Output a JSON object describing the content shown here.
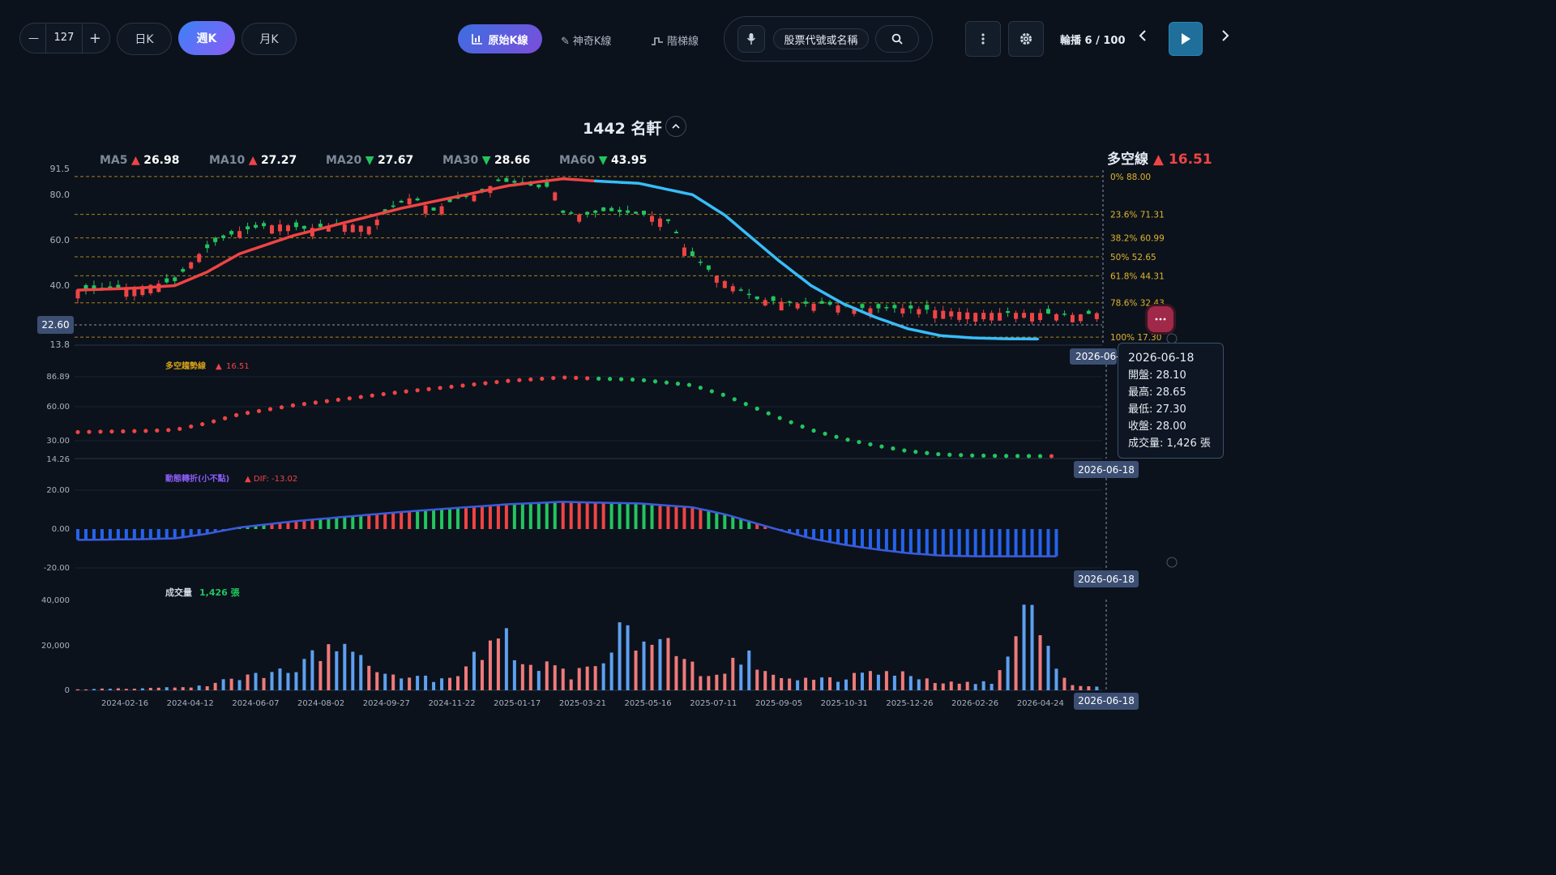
{
  "toolbar": {
    "minus": "—",
    "count": "127",
    "plus": "+",
    "periods": [
      "日K",
      "週K",
      "月K"
    ],
    "active_period": 1,
    "modes": [
      "原始K線",
      "神奇K線",
      "階梯線"
    ],
    "search_placeholder": "股票代號或名稱",
    "playback": "輪播 6 / 100"
  },
  "stock": {
    "title": "1442 名軒"
  },
  "ma": [
    {
      "name": "MA5",
      "dir": "▲",
      "value": "26.98",
      "color": "#ef4444"
    },
    {
      "name": "MA10",
      "dir": "▲",
      "value": "27.27",
      "color": "#ef4444"
    },
    {
      "name": "MA20",
      "dir": "▼",
      "value": "27.67",
      "color": "#22c55e"
    },
    {
      "name": "MA30",
      "dir": "▼",
      "value": "28.66",
      "color": "#22c55e"
    },
    {
      "name": "MA60",
      "dir": "▼",
      "value": "43.95",
      "color": "#22c55e"
    }
  ],
  "trend_line": {
    "label": "多空線",
    "dir": "▲",
    "value": "16.51"
  },
  "price_panel": {
    "y_ticks": [
      "91.5",
      "80.0",
      "60.0",
      "40.0",
      "13.8"
    ],
    "current_price_tag": "22.60",
    "date_tag": "2026-06-",
    "fib_levels": [
      {
        "label": "0%",
        "value": "88.00"
      },
      {
        "label": "23.6%",
        "value": "71.31"
      },
      {
        "label": "38.2%",
        "value": "60.99"
      },
      {
        "label": "50%",
        "value": "52.65"
      },
      {
        "label": "61.8%",
        "value": "44.31"
      },
      {
        "label": "78.6%",
        "value": "32.43"
      },
      {
        "label": "100%",
        "value": "17.30"
      }
    ]
  },
  "trend_panel": {
    "title": "多空趨勢線",
    "dir": "▲",
    "value": "16.51",
    "y_ticks": [
      "86.89",
      "60.00",
      "30.00",
      "14.26"
    ],
    "date_tag": "2026-06-18"
  },
  "macd_panel": {
    "title": "動態轉折(小不點)",
    "dif_label": "▲ DIF: -13.02",
    "y_ticks": [
      "20.00",
      "0.00",
      "-20.00"
    ],
    "date_tag": "2026-06-18"
  },
  "volume_panel": {
    "title": "成交量",
    "value": "1,426 張",
    "y_ticks": [
      "40,000",
      "20,000",
      "0"
    ],
    "date_tag": "2026-06-18"
  },
  "x_axis": [
    "2024-02-16",
    "2024-04-12",
    "2024-06-07",
    "2024-08-02",
    "2024-09-27",
    "2024-11-22",
    "2025-01-17",
    "2025-03-21",
    "2025-05-16",
    "2025-07-11",
    "2025-09-05",
    "2025-10-31",
    "2025-12-26",
    "2026-02-26",
    "2026-04-24"
  ],
  "tooltip": {
    "date": "2026-06-18",
    "open": "開盤: 28.10",
    "high": "最高: 28.65",
    "low": "最低: 27.30",
    "close": "收盤: 28.00",
    "volume": "成交量: 1,426 張"
  },
  "chart_data": {
    "type": "candlestick",
    "interval": "weekly",
    "bars": 127,
    "close_path": [
      [
        0,
        38
      ],
      [
        10,
        39
      ],
      [
        18,
        42
      ],
      [
        22,
        53
      ],
      [
        26,
        60
      ],
      [
        30,
        64
      ],
      [
        34,
        66
      ],
      [
        38,
        67
      ],
      [
        42,
        65
      ],
      [
        46,
        66
      ],
      [
        50,
        67
      ],
      [
        54,
        66
      ],
      [
        58,
        74
      ],
      [
        62,
        79
      ],
      [
        66,
        73
      ],
      [
        70,
        78
      ],
      [
        74,
        80
      ],
      [
        78,
        86
      ],
      [
        82,
        85
      ],
      [
        86,
        83
      ],
      [
        88,
        84
      ],
      [
        90,
        72
      ],
      [
        94,
        71
      ],
      [
        98,
        73
      ],
      [
        102,
        72
      ],
      [
        106,
        71
      ],
      [
        110,
        68
      ],
      [
        112,
        58
      ],
      [
        114,
        53
      ],
      [
        118,
        45
      ],
      [
        122,
        39
      ],
      [
        126,
        34
      ],
      [
        130,
        33
      ],
      [
        134,
        32
      ],
      [
        138,
        32
      ],
      [
        142,
        31
      ],
      [
        146,
        30
      ],
      [
        150,
        30
      ],
      [
        154,
        30
      ],
      [
        160,
        29
      ],
      [
        166,
        28
      ],
      [
        172,
        28
      ],
      [
        178,
        28
      ],
      [
        184,
        27
      ],
      [
        190,
        28
      ]
    ],
    "trend_line_path": [
      [
        0,
        38
      ],
      [
        12,
        39
      ],
      [
        18,
        40
      ],
      [
        24,
        46
      ],
      [
        30,
        54
      ],
      [
        40,
        62
      ],
      [
        50,
        68
      ],
      [
        60,
        74
      ],
      [
        70,
        79
      ],
      [
        80,
        84
      ],
      [
        90,
        87
      ],
      [
        96,
        86
      ],
      [
        104,
        85
      ],
      [
        114,
        80
      ],
      [
        120,
        71
      ],
      [
        124,
        63
      ],
      [
        130,
        51
      ],
      [
        136,
        40
      ],
      [
        142,
        32
      ],
      [
        148,
        26
      ],
      [
        154,
        21
      ],
      [
        160,
        18
      ],
      [
        166,
        17
      ],
      [
        172,
        16.6
      ],
      [
        178,
        16.5
      ]
    ],
    "volume_path": [
      [
        0,
        500
      ],
      [
        20,
        1500
      ],
      [
        40,
        10000
      ],
      [
        44,
        18000
      ],
      [
        48,
        28000
      ],
      [
        52,
        20000
      ],
      [
        56,
        12000
      ],
      [
        62,
        8000
      ],
      [
        66,
        5000
      ],
      [
        72,
        12000
      ],
      [
        78,
        29000
      ],
      [
        84,
        15000
      ],
      [
        88,
        12000
      ],
      [
        92,
        8000
      ],
      [
        96,
        13000
      ],
      [
        100,
        33000
      ],
      [
        104,
        22000
      ],
      [
        108,
        25000
      ],
      [
        112,
        16000
      ],
      [
        116,
        8000
      ],
      [
        120,
        12000
      ],
      [
        124,
        17000
      ],
      [
        130,
        5000
      ],
      [
        140,
        6000
      ],
      [
        150,
        9000
      ],
      [
        160,
        5000
      ],
      [
        170,
        4000
      ],
      [
        175,
        38000
      ],
      [
        178,
        33000
      ],
      [
        182,
        6000
      ],
      [
        186,
        3000
      ],
      [
        190,
        1500
      ]
    ],
    "x_ticks": [
      "2024-02-16",
      "2024-04-12",
      "2024-06-07",
      "2024-08-02",
      "2024-09-27",
      "2024-11-22",
      "2025-01-17",
      "2025-03-21",
      "2025-05-16",
      "2025-07-11",
      "2025-09-05",
      "2025-10-31",
      "2025-12-26",
      "2026-02-26",
      "2026-04-24"
    ],
    "ylim_price": [
      13.8,
      91.5
    ],
    "ylim_trend": [
      14.26,
      86.89
    ],
    "ylim_macd": [
      -20,
      20
    ],
    "ylim_volume": [
      0,
      40000
    ],
    "colors": {
      "up": "#ef4444",
      "down": "#22c55e",
      "trend_up": "#ef4444",
      "trend_down": "#38bdf8",
      "fib": "#d4a017",
      "hist_neg": "#2563eb"
    }
  }
}
